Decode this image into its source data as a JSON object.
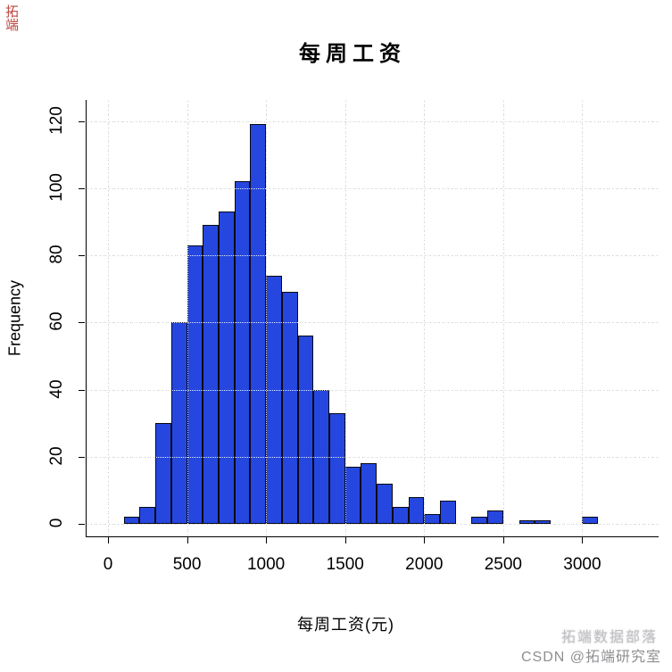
{
  "title": "每周工资",
  "axes": {
    "x_label": "每周工资(元)",
    "y_label": "Frequency",
    "x_ticks": [
      0,
      500,
      1000,
      1500,
      2000,
      2500,
      3000
    ],
    "y_ticks": [
      0,
      20,
      40,
      60,
      80,
      100,
      120
    ]
  },
  "chart_data": {
    "type": "bar",
    "subtype": "histogram",
    "title": "每周工资",
    "xlabel": "每周工资(元)",
    "ylabel": "Frequency",
    "bin_start": 100,
    "bin_width": 100,
    "bin_edges": [
      100,
      200,
      300,
      400,
      500,
      600,
      700,
      800,
      900,
      1000,
      1100,
      1200,
      1300,
      1400,
      1500,
      1600,
      1700,
      1800,
      1900,
      2000,
      2100,
      2200,
      2300,
      2400,
      2500,
      2600,
      2700,
      2800,
      2900,
      3000,
      3100
    ],
    "values": [
      2,
      5,
      30,
      60,
      83,
      89,
      93,
      102,
      119,
      74,
      69,
      56,
      40,
      33,
      17,
      18,
      12,
      5,
      8,
      3,
      7,
      0,
      2,
      4,
      0,
      1,
      1,
      0,
      0,
      2
    ],
    "xlim": [
      0,
      3100
    ],
    "ylim": [
      0,
      120
    ],
    "grid": true,
    "legend": null,
    "bar_color": "#2547DF",
    "bar_border_color": "#0a0a14",
    "grid_color": "#c9c9c9"
  },
  "watermark": {
    "line1": "拓端数据部落",
    "line2": "CSDN @拓端研究室"
  },
  "corner_mark": "拓端"
}
